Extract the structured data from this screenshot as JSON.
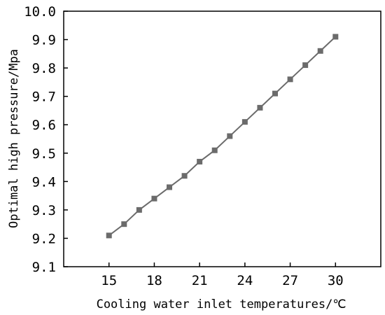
{
  "chart_data": {
    "type": "line",
    "xlabel": "Cooling water inlet temperatures/℃",
    "ylabel": "Optimal high pressure/Mpa",
    "xlim": [
      12,
      33
    ],
    "ylim": [
      9.1,
      10.0
    ],
    "xticks": [
      15,
      18,
      21,
      24,
      27,
      30
    ],
    "xtick_labels": [
      "15",
      "18",
      "21",
      "24",
      "27",
      "30"
    ],
    "yticks": [
      9.1,
      9.2,
      9.3,
      9.4,
      9.5,
      9.6,
      9.7,
      9.8,
      9.9,
      10.0
    ],
    "ytick_labels": [
      "9.1",
      "9.2",
      "9.3",
      "9.4",
      "9.5",
      "9.6",
      "9.7",
      "9.8",
      "9.9",
      "10.0"
    ],
    "grid": false,
    "series": [
      {
        "marker": "square",
        "color": "#6b6b6b",
        "x": [
          15,
          16,
          17,
          18,
          19,
          20,
          21,
          22,
          23,
          24,
          25,
          26,
          27,
          28,
          29,
          30
        ],
        "values": [
          9.21,
          9.25,
          9.3,
          9.34,
          9.38,
          9.42,
          9.47,
          9.51,
          9.56,
          9.61,
          9.66,
          9.71,
          9.76,
          9.81,
          9.86,
          9.91
        ]
      }
    ]
  }
}
